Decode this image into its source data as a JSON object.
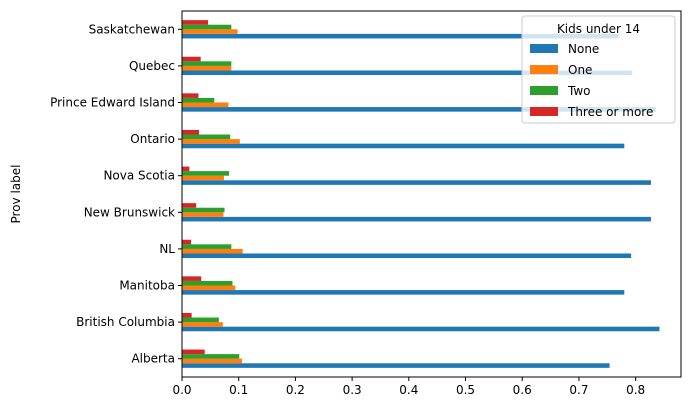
{
  "chart_data": {
    "type": "bar",
    "orientation": "horizontal",
    "ylabel": "Prov label",
    "xlabel": "",
    "categories": [
      "Alberta",
      "British Columbia",
      "Manitoba",
      "NL",
      "New Brunswick",
      "Nova Scotia",
      "Ontario",
      "Prince Edward Island",
      "Quebec",
      "Saskatchewan"
    ],
    "series": [
      {
        "name": "None",
        "color": "#1f77b4",
        "values": [
          0.754,
          0.842,
          0.78,
          0.792,
          0.827,
          0.827,
          0.78,
          0.836,
          0.794,
          0.77
        ]
      },
      {
        "name": "One",
        "color": "#ff7f0e",
        "values": [
          0.106,
          0.072,
          0.094,
          0.107,
          0.073,
          0.074,
          0.102,
          0.082,
          0.087,
          0.098
        ]
      },
      {
        "name": "Two",
        "color": "#2ca02c",
        "values": [
          0.101,
          0.065,
          0.089,
          0.087,
          0.075,
          0.083,
          0.085,
          0.057,
          0.087,
          0.087
        ]
      },
      {
        "name": "Three or more",
        "color": "#d62728",
        "values": [
          0.04,
          0.017,
          0.034,
          0.016,
          0.025,
          0.013,
          0.03,
          0.029,
          0.033,
          0.046
        ]
      }
    ],
    "xlim": [
      0,
      0.88
    ],
    "xticks": [
      0.0,
      0.1,
      0.2,
      0.3,
      0.4,
      0.5,
      0.6,
      0.7,
      0.8
    ],
    "xtick_labels": [
      "0.0",
      "0.1",
      "0.2",
      "0.3",
      "0.4",
      "0.5",
      "0.6",
      "0.7",
      "0.8"
    ],
    "legend": {
      "title": "Kids under 14",
      "placement": "top-right"
    },
    "grid": false
  }
}
